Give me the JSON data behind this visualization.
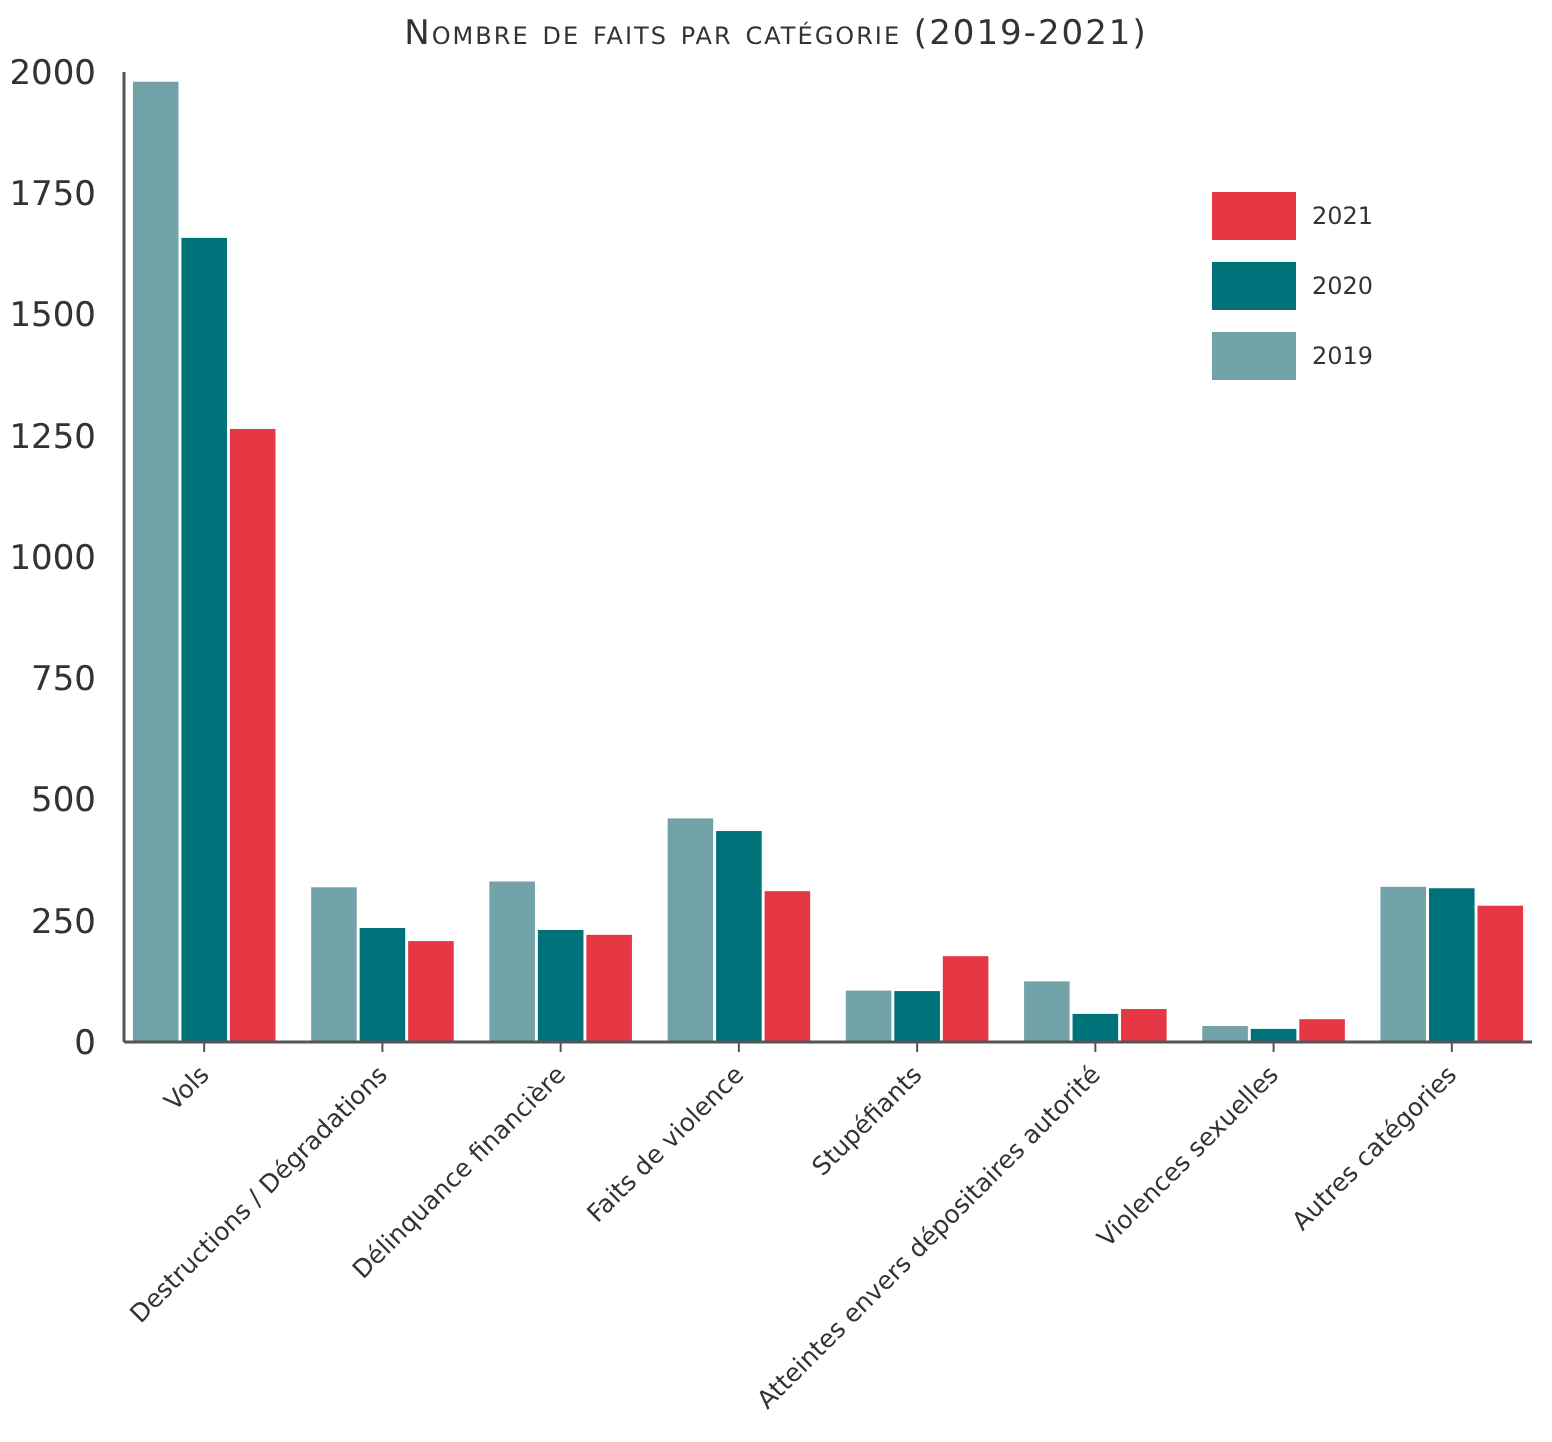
{
  "chart_data": {
    "type": "bar",
    "title": "Nombre de faits par catégorie (2019-2021)",
    "categories": [
      "Vols",
      "Destructions / Dégradations",
      "Délinquance financière",
      "Faits de violence",
      "Stupéfiants",
      "Atteintes envers dépositaires autorité",
      "Violences sexuelles",
      "Autres catégories"
    ],
    "series": [
      {
        "name": "2019",
        "color": "#72a3a9",
        "values": [
          1980,
          319,
          331,
          461,
          106,
          125,
          33,
          320
        ]
      },
      {
        "name": "2020",
        "color": "#00727a",
        "values": [
          1658,
          235,
          231,
          435,
          105,
          58,
          27,
          317
        ]
      },
      {
        "name": "2021",
        "color": "#e63745",
        "values": [
          1264,
          208,
          221,
          311,
          177,
          68,
          47,
          281
        ]
      }
    ],
    "ylim": [
      0,
      2000
    ],
    "yticks": [
      0,
      250,
      500,
      750,
      1000,
      1250,
      1500,
      1750,
      2000
    ],
    "grid": false,
    "legend": "top right"
  }
}
